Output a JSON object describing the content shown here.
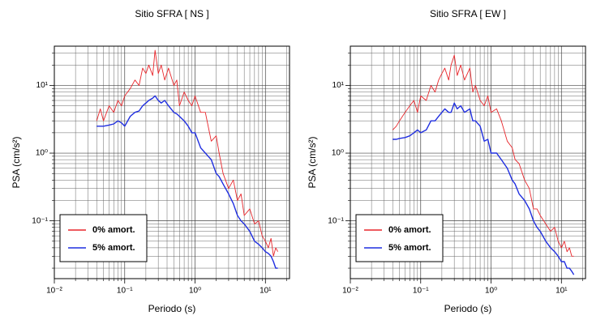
{
  "chart_data": [
    {
      "type": "line",
      "title": "Sitio SFRA [ NS ]",
      "x_label": "Periodo (s)",
      "y_label": "PSA (cm/s²)",
      "log_x": true,
      "log_y": true,
      "grid": true,
      "legend": "lower left",
      "xlim": [
        0.01,
        22
      ],
      "ylim": [
        0.014,
        38
      ],
      "xticks": [
        {
          "value": 0.01,
          "label": "10⁻²"
        },
        {
          "value": 0.1,
          "label": "10⁻¹"
        },
        {
          "value": 1,
          "label": "10⁰"
        },
        {
          "value": 10,
          "label": "10¹"
        }
      ],
      "yticks": [
        {
          "value": 0.1,
          "label": "10⁻¹"
        },
        {
          "value": 1,
          "label": "10⁰"
        },
        {
          "value": 10,
          "label": "10¹"
        }
      ],
      "xminorticks": [
        0.02,
        0.03,
        0.04,
        0.05,
        0.06,
        0.07,
        0.08,
        0.09,
        0.2,
        0.3,
        0.4,
        0.5,
        0.6,
        0.7,
        0.8,
        0.9,
        2,
        3,
        4,
        5,
        6,
        7,
        8,
        9,
        20
      ],
      "yminorticks": [
        0.02,
        0.03,
        0.04,
        0.05,
        0.06,
        0.07,
        0.08,
        0.09,
        0.2,
        0.3,
        0.4,
        0.5,
        0.6,
        0.7,
        0.8,
        0.9,
        2,
        3,
        4,
        5,
        6,
        7,
        8,
        9,
        20,
        30
      ],
      "x": [
        0.04,
        0.045,
        0.05,
        0.06,
        0.07,
        0.08,
        0.09,
        0.1,
        0.12,
        0.14,
        0.16,
        0.18,
        0.2,
        0.22,
        0.25,
        0.27,
        0.3,
        0.33,
        0.37,
        0.42,
        0.5,
        0.55,
        0.6,
        0.7,
        0.8,
        0.9,
        1.0,
        1.2,
        1.4,
        1.7,
        2,
        2.2,
        2.5,
        3,
        3.5,
        4,
        4.5,
        5,
        6,
        7,
        8,
        9,
        10,
        11,
        12,
        13,
        14,
        15
      ],
      "series": [
        {
          "name": "0% amort.",
          "color": "#e8262b",
          "values": [
            3,
            4.5,
            3,
            5,
            4,
            6,
            5,
            7,
            9,
            12,
            10,
            18,
            15,
            20,
            14,
            33,
            15,
            20,
            12,
            18,
            10,
            12,
            5,
            8,
            6,
            5,
            7,
            4,
            4,
            1.5,
            1.8,
            1,
            0.5,
            0.3,
            0.4,
            0.2,
            0.25,
            0.12,
            0.15,
            0.09,
            0.1,
            0.06,
            0.05,
            0.04,
            0.055,
            0.03,
            0.04,
            0.035
          ]
        },
        {
          "name": "5% amort.",
          "color": "#1f2ee0",
          "values": [
            2.5,
            2.5,
            2.5,
            2.6,
            2.7,
            3,
            2.8,
            2.5,
            3.5,
            4,
            4.2,
            5,
            5.5,
            6,
            6.5,
            7,
            6,
            5.5,
            6,
            5,
            4,
            3.8,
            3.5,
            3,
            2.5,
            2,
            2,
            1.2,
            1,
            0.8,
            0.5,
            0.45,
            0.35,
            0.25,
            0.18,
            0.12,
            0.1,
            0.09,
            0.07,
            0.05,
            0.045,
            0.04,
            0.035,
            0.033,
            0.03,
            0.025,
            0.02,
            0.02
          ]
        }
      ]
    },
    {
      "type": "line",
      "title": "Sitio SFRA [ EW ]",
      "x_label": "Periodo (s)",
      "y_label": "PSA (cm/s²)",
      "log_x": true,
      "log_y": true,
      "grid": true,
      "legend": "lower left",
      "xlim": [
        0.01,
        22
      ],
      "ylim": [
        0.014,
        38
      ],
      "xticks": [
        {
          "value": 0.01,
          "label": "10⁻²"
        },
        {
          "value": 0.1,
          "label": "10⁻¹"
        },
        {
          "value": 1,
          "label": "10⁰"
        },
        {
          "value": 10,
          "label": "10¹"
        }
      ],
      "yticks": [
        {
          "value": 0.1,
          "label": "10⁻¹"
        },
        {
          "value": 1,
          "label": "10⁰"
        },
        {
          "value": 10,
          "label": "10¹"
        }
      ],
      "xminorticks": [
        0.02,
        0.03,
        0.04,
        0.05,
        0.06,
        0.07,
        0.08,
        0.09,
        0.2,
        0.3,
        0.4,
        0.5,
        0.6,
        0.7,
        0.8,
        0.9,
        2,
        3,
        4,
        5,
        6,
        7,
        8,
        9,
        20
      ],
      "yminorticks": [
        0.02,
        0.03,
        0.04,
        0.05,
        0.06,
        0.07,
        0.08,
        0.09,
        0.2,
        0.3,
        0.4,
        0.5,
        0.6,
        0.7,
        0.8,
        0.9,
        2,
        3,
        4,
        5,
        6,
        7,
        8,
        9,
        20,
        30
      ],
      "x": [
        0.04,
        0.045,
        0.05,
        0.06,
        0.07,
        0.08,
        0.09,
        0.1,
        0.12,
        0.14,
        0.16,
        0.18,
        0.2,
        0.22,
        0.25,
        0.27,
        0.3,
        0.33,
        0.37,
        0.42,
        0.5,
        0.55,
        0.6,
        0.7,
        0.8,
        0.9,
        1.0,
        1.2,
        1.4,
        1.7,
        2,
        2.2,
        2.5,
        3,
        3.5,
        4,
        4.5,
        5,
        6,
        7,
        8,
        9,
        10,
        11,
        12,
        13,
        14,
        15
      ],
      "series": [
        {
          "name": "0% amort.",
          "color": "#e8262b",
          "values": [
            2.2,
            2.5,
            3,
            4,
            5,
            6,
            4,
            7,
            6,
            10,
            8,
            12,
            15,
            18,
            12,
            20,
            28,
            14,
            20,
            12,
            18,
            8,
            10,
            6,
            5,
            7,
            4,
            4.5,
            3,
            1.5,
            1.2,
            0.8,
            0.7,
            0.4,
            0.3,
            0.15,
            0.15,
            0.12,
            0.09,
            0.07,
            0.08,
            0.05,
            0.04,
            0.05,
            0.035,
            0.04,
            0.03,
            0.03
          ]
        },
        {
          "name": "5% amort.",
          "color": "#1f2ee0",
          "values": [
            1.6,
            1.6,
            1.65,
            1.7,
            1.8,
            2,
            2.2,
            2,
            2.2,
            3,
            3,
            3.5,
            4,
            4.5,
            4,
            4,
            5.5,
            4.5,
            5,
            4,
            4.5,
            3,
            3,
            2.5,
            1.5,
            1.6,
            1,
            1,
            0.8,
            0.6,
            0.4,
            0.35,
            0.25,
            0.2,
            0.15,
            0.1,
            0.08,
            0.07,
            0.05,
            0.04,
            0.035,
            0.03,
            0.025,
            0.025,
            0.02,
            0.02,
            0.018,
            0.016
          ]
        }
      ]
    }
  ]
}
